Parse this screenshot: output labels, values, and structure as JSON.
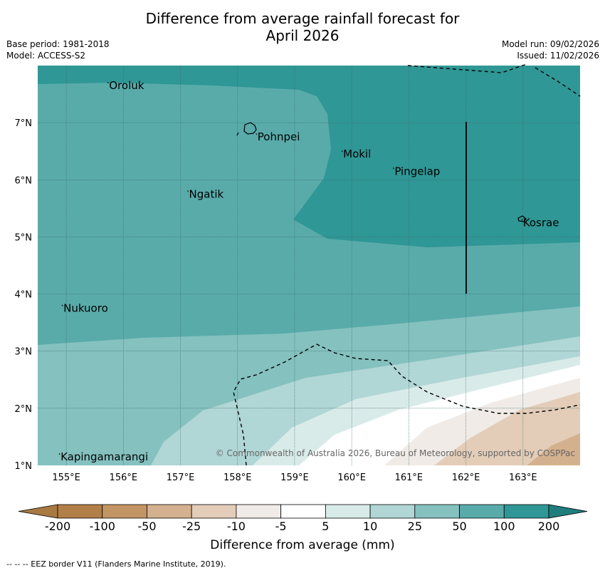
{
  "title_line1": "Difference from average rainfall forecast for",
  "title_line2": "April 2026",
  "meta": {
    "base_period": "Base period: 1981-2018",
    "model": "Model: ACCESS-S2",
    "model_run": "Model run: 09/02/2026",
    "issued": "Issued: 11/02/2026"
  },
  "map": {
    "lat_range": [
      1,
      8
    ],
    "lon_range": [
      154.5,
      164
    ],
    "lat_ticks": [
      "1°N",
      "2°N",
      "3°N",
      "4°N",
      "5°N",
      "6°N",
      "7°N"
    ],
    "lon_ticks": [
      "155°E",
      "156°E",
      "157°E",
      "158°E",
      "159°E",
      "160°E",
      "161°E",
      "162°E",
      "163°E"
    ],
    "places": [
      {
        "name": "Oroluk",
        "lon": 155.75,
        "lat": 7.65
      },
      {
        "name": "Pohnpei",
        "lon": 158.35,
        "lat": 6.75
      },
      {
        "name": "Mokil",
        "lon": 159.85,
        "lat": 6.45
      },
      {
        "name": "Pingelap",
        "lon": 160.75,
        "lat": 6.15
      },
      {
        "name": "Ngatik",
        "lon": 157.15,
        "lat": 5.75
      },
      {
        "name": "Kosrae",
        "lon": 163.0,
        "lat": 5.25
      },
      {
        "name": "Nukuoro",
        "lon": 154.95,
        "lat": 3.75
      },
      {
        "name": "Kapingamarangi",
        "lon": 154.9,
        "lat": 1.15
      }
    ],
    "copyright": "© Commonwealth of Australia 2026, Bureau of Meteorology, supported by COSPPac"
  },
  "colorbar": {
    "labels": [
      "-200",
      "-100",
      "-50",
      "-25",
      "-10",
      "-5",
      "5",
      "10",
      "25",
      "50",
      "100",
      "200"
    ],
    "colors": [
      "#a87a42",
      "#b37f48",
      "#c39565",
      "#d4b18e",
      "#e3cdb8",
      "#f0ebe6",
      "#ffffff",
      "#d9ebe9",
      "#b0d6d5",
      "#84c1bf",
      "#59abaa",
      "#2f9795",
      "#1f7d7b"
    ],
    "title": "Difference from average (mm)"
  },
  "footer": "--  --  -- EEZ border V11 (Flanders Marine Institute, 2019)."
}
